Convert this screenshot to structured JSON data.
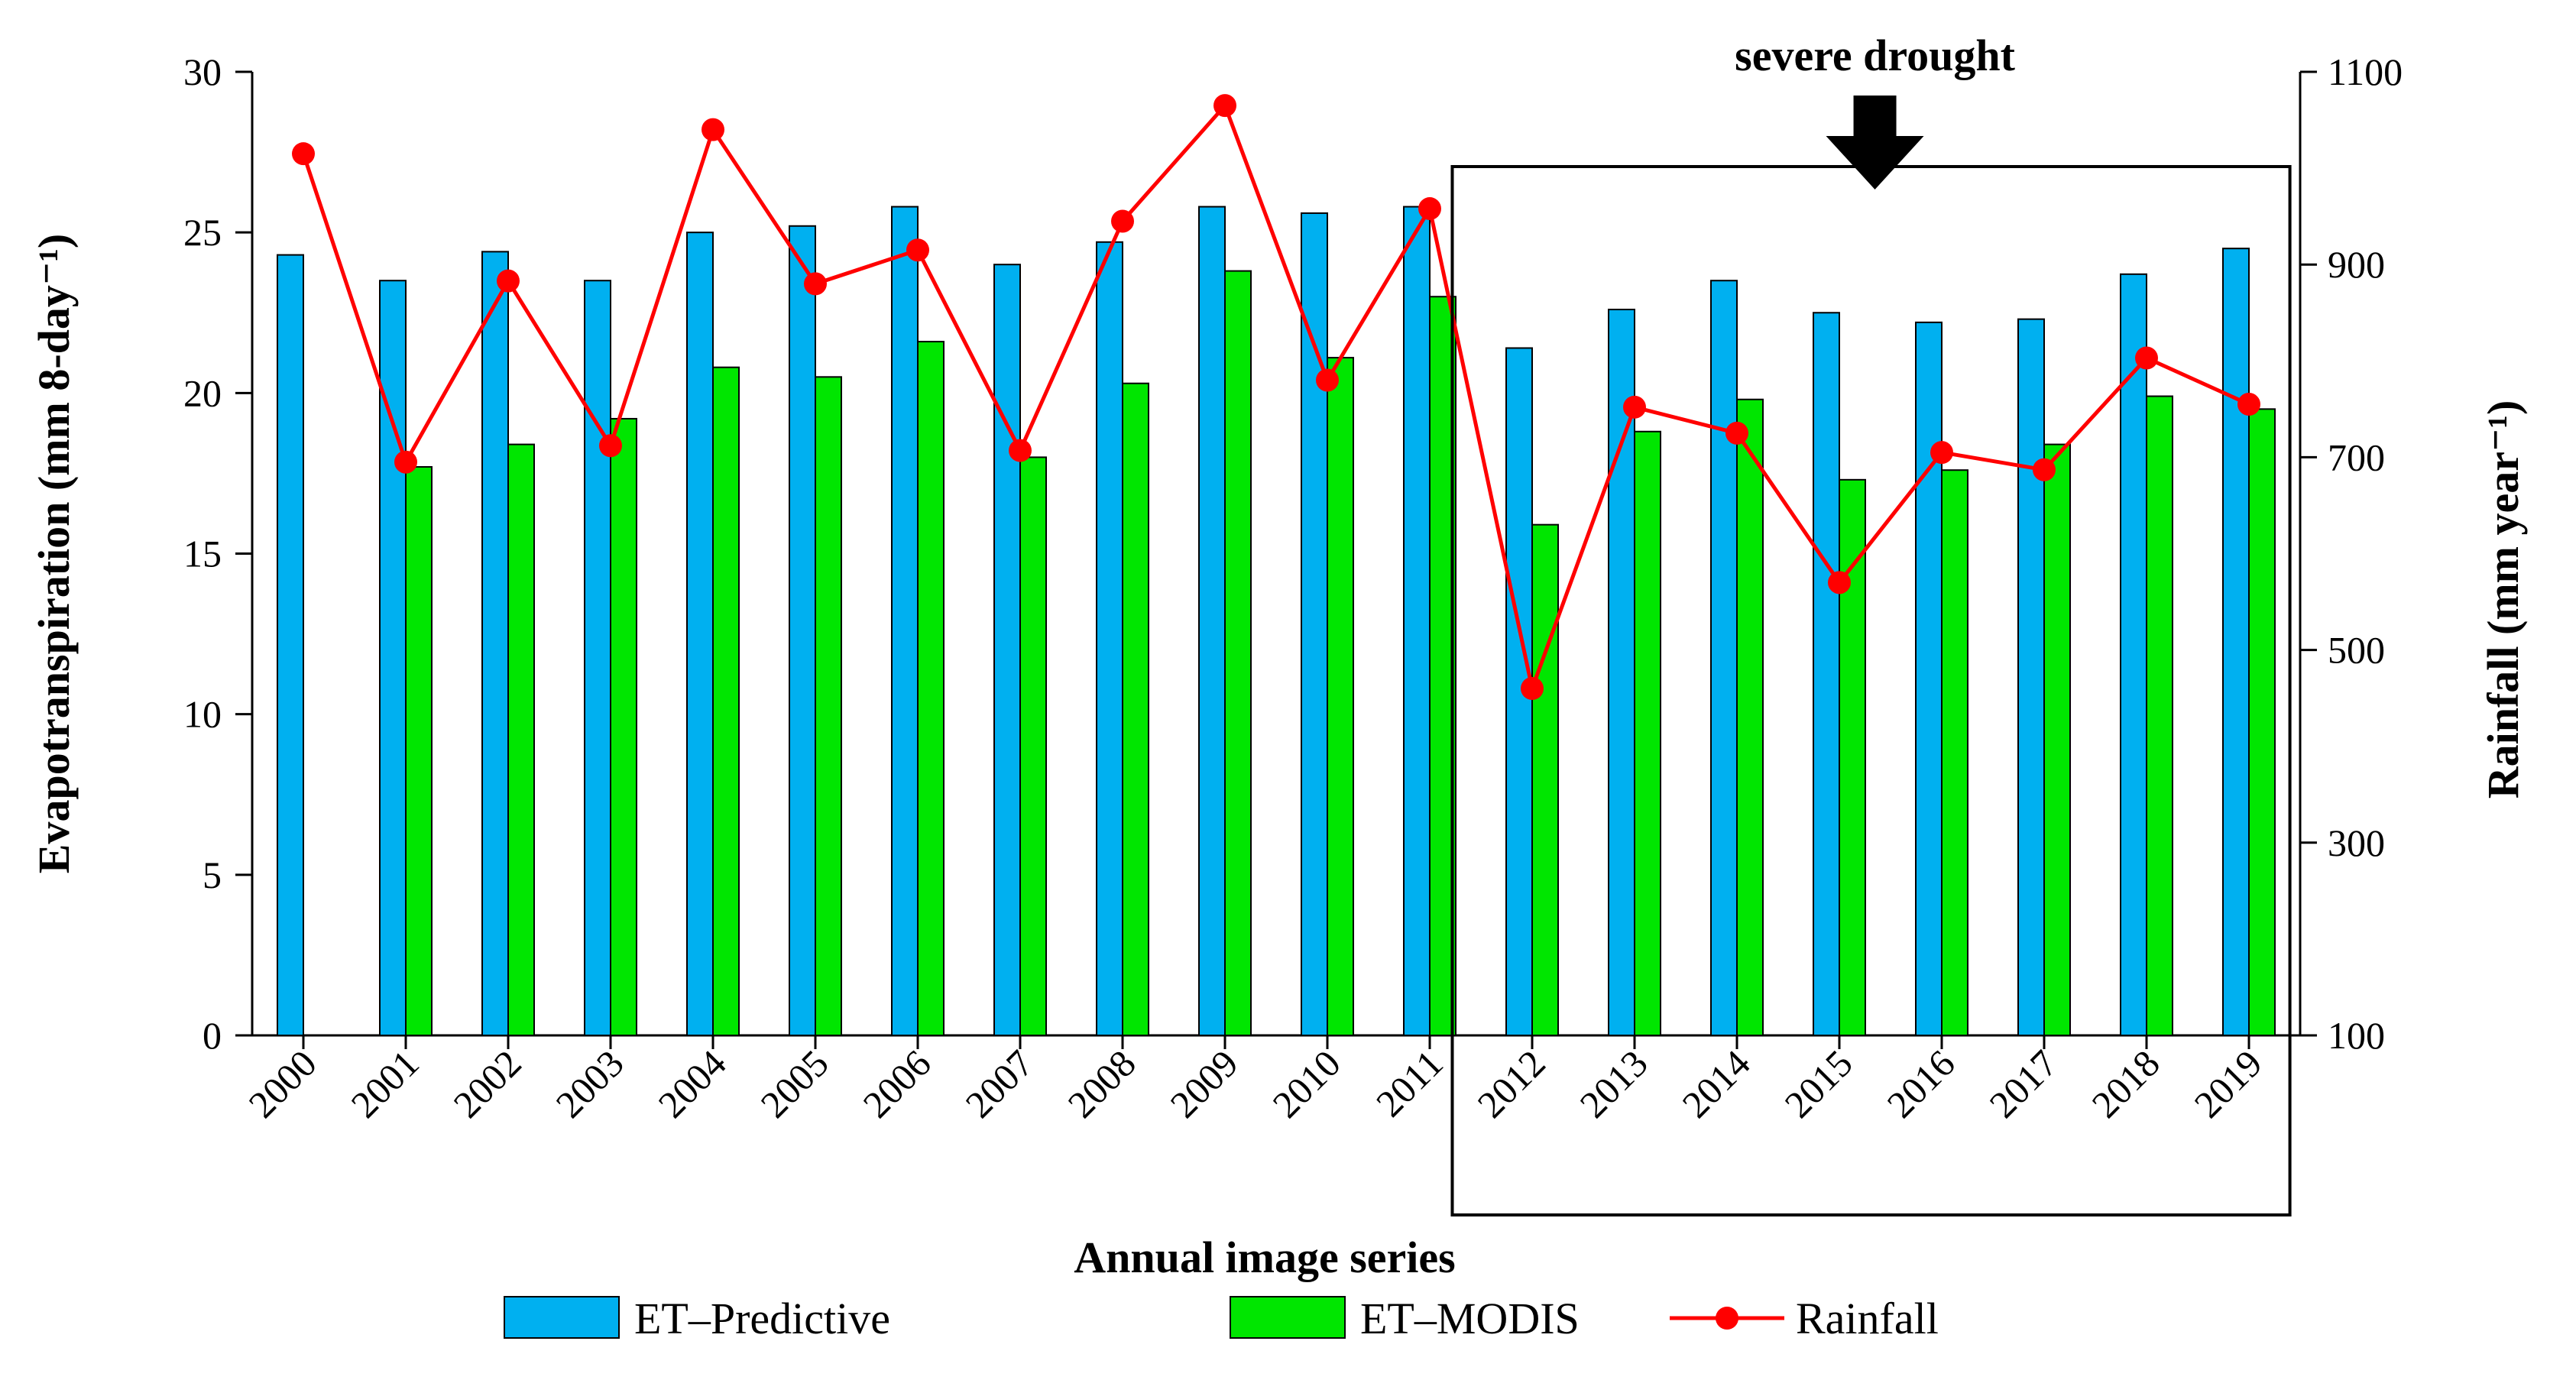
{
  "chart_data": {
    "type": "bar",
    "categories": [
      "2000",
      "2001",
      "2002",
      "2003",
      "2004",
      "2005",
      "2006",
      "2007",
      "2008",
      "2009",
      "2010",
      "2011",
      "2012",
      "2013",
      "2014",
      "2015",
      "2016",
      "2017",
      "2018",
      "2019"
    ],
    "series": [
      {
        "name": "ET–Predictive",
        "kind": "bar",
        "axis": "left",
        "color": "#00b0f0",
        "values": [
          24.3,
          23.5,
          24.4,
          23.5,
          25.0,
          25.2,
          25.8,
          24.0,
          24.7,
          25.8,
          25.6,
          25.8,
          21.4,
          22.6,
          23.5,
          22.5,
          22.2,
          22.3,
          23.7,
          24.5
        ]
      },
      {
        "name": "ET–MODIS",
        "kind": "bar",
        "axis": "left",
        "color": "#00e600",
        "values": [
          null,
          17.7,
          18.4,
          19.2,
          20.8,
          20.5,
          21.6,
          18.0,
          20.3,
          23.8,
          21.1,
          23.0,
          15.9,
          18.8,
          19.8,
          17.3,
          17.6,
          18.4,
          19.9,
          19.5
        ]
      },
      {
        "name": "Rainfall",
        "kind": "line",
        "axis": "right",
        "color": "#ff0000",
        "values": [
          1015,
          695,
          883,
          712,
          1040,
          880,
          915,
          707,
          945,
          1065,
          780,
          958,
          460,
          752,
          725,
          570,
          705,
          687,
          803,
          755
        ]
      }
    ],
    "xlabel": "Annual image series",
    "ylabel": "Evapotranspiration (mm 8-day⁻¹)",
    "ylabel2": "Rainfall (mm year⁻¹)",
    "ylim": [
      0,
      30
    ],
    "y2lim": [
      100,
      1100
    ],
    "yticks": [
      "0",
      "5",
      "10",
      "15",
      "20",
      "25",
      "30"
    ],
    "y2ticks": [
      "100",
      "300",
      "500",
      "700",
      "900",
      "1100"
    ],
    "annotation": {
      "text": "severe drought",
      "from_category": "2012",
      "to_category": "2019"
    },
    "legend": [
      {
        "label": "ET–Predictive",
        "kind": "bar",
        "color": "#00b0f0"
      },
      {
        "label": "ET–MODIS",
        "kind": "bar",
        "color": "#00e600"
      },
      {
        "label": "Rainfall",
        "kind": "line",
        "color": "#ff0000"
      }
    ]
  }
}
